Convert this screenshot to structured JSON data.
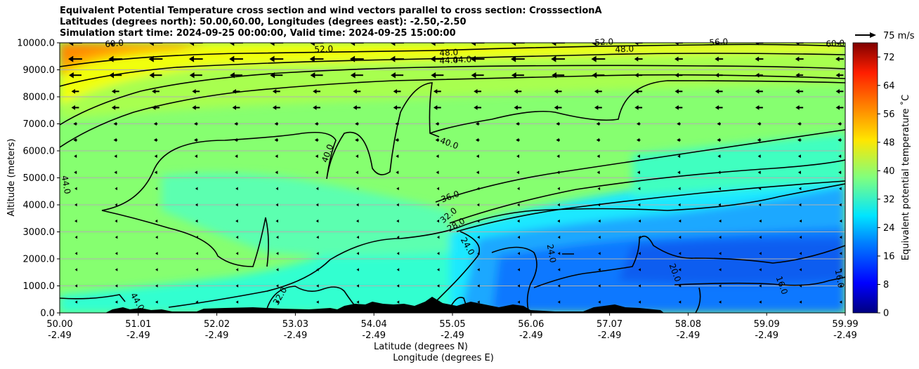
{
  "title_lines": [
    "Equivalent Potential Temperature cross section and wind vectors parallel to cross section: CrosssectionA",
    "Latitudes (degrees north): 50.00,60.00, Longitudes (degrees east): -2.50,-2.50",
    "Simulation start time: 2024-09-25 00:00:00, Valid time: 2024-09-25 15:00:00"
  ],
  "chart_data": {
    "type": "heatmap",
    "ylabel": "Altitude (meters)",
    "xlabel_1": "Latitude (degrees N)",
    "xlabel_2": "Longitude (degrees E)",
    "ylim": [
      0,
      10000
    ],
    "xlim": [
      50.0,
      59.99
    ],
    "y_ticks": [
      "0.0",
      "1000.0",
      "2000.0",
      "3000.0",
      "4000.0",
      "5000.0",
      "6000.0",
      "7000.0",
      "8000.0",
      "9000.0",
      "10000.0"
    ],
    "x_ticks": [
      {
        "lat": "50.00",
        "lon": "-2.49"
      },
      {
        "lat": "51.01",
        "lon": "-2.49"
      },
      {
        "lat": "52.02",
        "lon": "-2.49"
      },
      {
        "lat": "53.03",
        "lon": "-2.49"
      },
      {
        "lat": "54.04",
        "lon": "-2.49"
      },
      {
        "lat": "55.05",
        "lon": "-2.49"
      },
      {
        "lat": "56.06",
        "lon": "-2.49"
      },
      {
        "lat": "57.07",
        "lon": "-2.49"
      },
      {
        "lat": "58.08",
        "lon": "-2.49"
      },
      {
        "lat": "59.09",
        "lon": "-2.49"
      },
      {
        "lat": "59.99",
        "lon": "-2.49"
      }
    ],
    "grid": "horizontal",
    "colorbar": {
      "label": "Equivalent potential temperature ˚C",
      "ticks": [
        "0",
        "8",
        "16",
        "24",
        "32",
        "40",
        "48",
        "56",
        "64",
        "72"
      ],
      "range": [
        0,
        76
      ],
      "colormap": "jet"
    },
    "quiver_key": "75 m/s",
    "contour_labels": [
      "60.0",
      "52.0",
      "48.0",
      "44.0",
      "44.0",
      "52.0",
      "48.0",
      "56.0",
      "60.0",
      "44.0",
      "40.0",
      "40.0",
      "36.0",
      "32.0",
      "28.0",
      "24.0",
      "24.0",
      "20.0",
      "16.0",
      "16.0",
      "44.0",
      "32.0"
    ],
    "field_summary": [
      {
        "region": "upper tropospheric band above 8500 m",
        "theta_e_c": 48
      },
      {
        "region": "upper-left corner near 10000 m",
        "theta_e_c": 58
      },
      {
        "region": "mid troposphere 4000-8000 m",
        "theta_e_c": 40
      },
      {
        "region": "lower levels south of 54N",
        "theta_e_c": 38
      },
      {
        "region": "lower levels 55N-60N",
        "theta_e_c": 18
      }
    ]
  }
}
